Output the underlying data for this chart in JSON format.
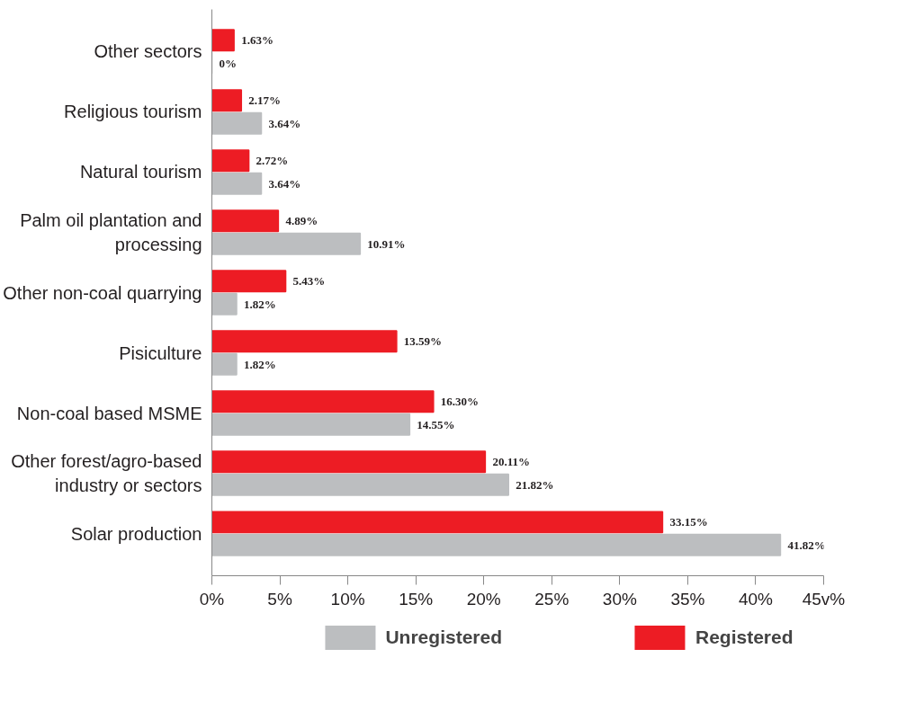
{
  "chart_data": {
    "type": "bar",
    "orientation": "horizontal",
    "categories": [
      "Other sectors",
      "Religious tourism",
      "Natural tourism",
      "Palm oil plantation and\nprocessing",
      "Other non-coal quarrying",
      "Pisiculture",
      "Non-coal based MSME",
      "Other forest/agro-based\nindustry or sectors",
      "Solar production"
    ],
    "series": [
      {
        "name": "Unregistered",
        "color": "#bcbec0",
        "values": [
          0,
          3.64,
          3.64,
          10.91,
          1.82,
          1.82,
          14.55,
          21.82,
          41.82
        ],
        "value_labels": [
          "0%",
          "3.64%",
          "3.64%",
          "10.91%",
          "1.82%",
          "1.82%",
          "14.55%",
          "21.82%",
          "41.82%"
        ]
      },
      {
        "name": "Registered",
        "color": "#ed1c24",
        "values": [
          1.63,
          2.17,
          2.72,
          4.89,
          5.43,
          13.59,
          16.3,
          20.11,
          33.15
        ],
        "value_labels": [
          "1.63%",
          "2.17%",
          "2.72%",
          "4.89%",
          "5.43%",
          "13.59%",
          "16.30%",
          "20.11%",
          "33.15%"
        ]
      }
    ],
    "xlim": [
      0,
      45
    ],
    "xticks": [
      {
        "value": 0,
        "label": "0%"
      },
      {
        "value": 5,
        "label": "5%"
      },
      {
        "value": 10,
        "label": "10%"
      },
      {
        "value": 15,
        "label": "15%"
      },
      {
        "value": 20,
        "label": "20%"
      },
      {
        "value": 25,
        "label": "25%"
      },
      {
        "value": 30,
        "label": "30%"
      },
      {
        "value": 35,
        "label": "35%"
      },
      {
        "value": 40,
        "label": "40%"
      },
      {
        "value": 45,
        "label": "45v%"
      }
    ],
    "grid": false,
    "legend": "bottom"
  }
}
